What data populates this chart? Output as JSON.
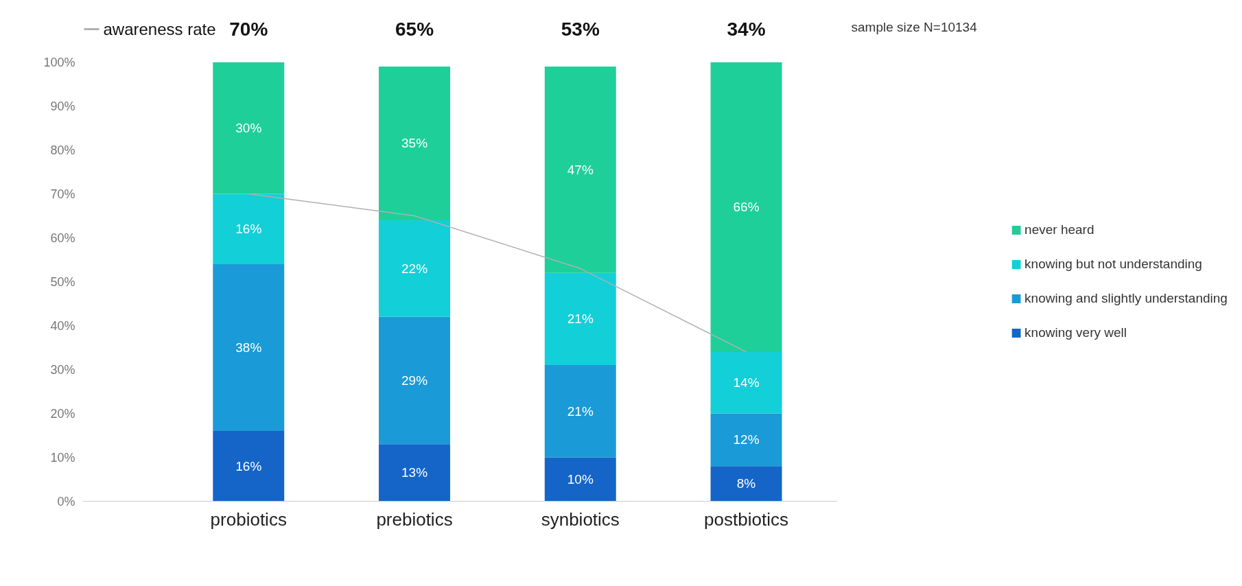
{
  "chart_data": {
    "type": "bar",
    "stacked": true,
    "categories": [
      "probiotics",
      "prebiotics",
      "synbiotics",
      "postbiotics"
    ],
    "series": [
      {
        "name": "knowing very well",
        "color": "#1565c8",
        "values": [
          16,
          13,
          10,
          8
        ],
        "value_labels": [
          "16%",
          "13%",
          "10%",
          "8%"
        ]
      },
      {
        "name": "knowing and slightly understanding",
        "color": "#1a9ad6",
        "values": [
          38,
          29,
          21,
          12
        ],
        "value_labels": [
          "38%",
          "29%",
          "21%",
          "12%"
        ]
      },
      {
        "name": "knowing but not understanding",
        "color": "#12cfd8",
        "values": [
          16,
          22,
          21,
          14
        ],
        "value_labels": [
          "16%",
          "22%",
          "21%",
          "14%"
        ]
      },
      {
        "name": "never heard",
        "color": "#1ecf9a",
        "values": [
          30,
          35,
          47,
          66
        ],
        "value_labels": [
          "30%",
          "35%",
          "47%",
          "66%"
        ]
      },
      {
        "name": "awareness rate",
        "type": "line",
        "color": "#b0b0b0",
        "values": [
          70,
          65,
          53,
          34
        ],
        "value_labels": [
          "70%",
          "65%",
          "53%",
          "34%"
        ]
      }
    ],
    "ylim": [
      0,
      100
    ],
    "yticks": [
      {
        "value": 0,
        "label": "0%"
      },
      {
        "value": 10,
        "label": "10%"
      },
      {
        "value": 20,
        "label": "20%"
      },
      {
        "value": 30,
        "label": "30%"
      },
      {
        "value": 40,
        "label": "40%"
      },
      {
        "value": 50,
        "label": "50%"
      },
      {
        "value": 60,
        "label": "60%"
      },
      {
        "value": 70,
        "label": "70%"
      },
      {
        "value": 80,
        "label": "80%"
      },
      {
        "value": 90,
        "label": "90%"
      },
      {
        "value": 100,
        "label": "100%"
      }
    ],
    "grid": false,
    "legend": "right",
    "annotations": [
      "sample size N=10134"
    ]
  }
}
